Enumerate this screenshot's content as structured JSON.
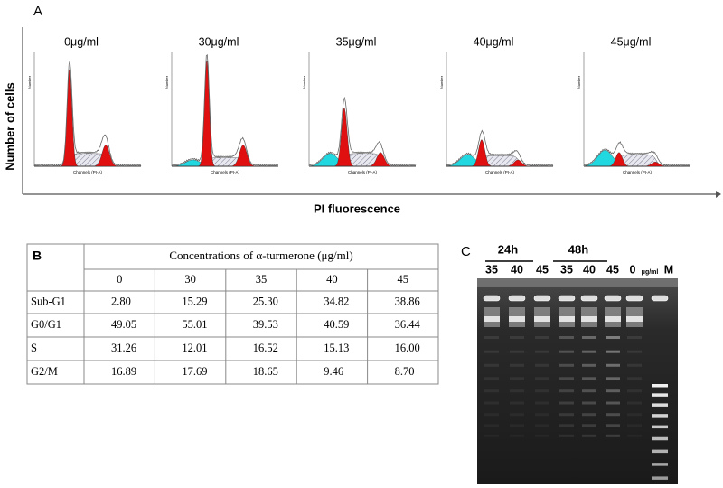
{
  "labels": {
    "panel_a": "A",
    "panel_c": "C"
  },
  "panel_a": {
    "y_axis_label": "Number of cells",
    "x_axis_label": "PI  fluorescence",
    "histogram_x_label": "Channels (PI-A)",
    "histogram_y_label": "Number",
    "histograms": [
      {
        "title": "0μg/ml"
      },
      {
        "title": "30μg/ml"
      },
      {
        "title": "35μg/ml"
      },
      {
        "title": "40μg/ml"
      },
      {
        "title": "45μg/ml"
      }
    ]
  },
  "table": {
    "corner": "B",
    "header": "Concentrations of α-turmerone (μg/ml)",
    "columns": [
      "0",
      "30",
      "35",
      "40",
      "45"
    ],
    "rows": [
      [
        "Sub-G1",
        "2.80",
        "15.29",
        "25.30",
        "34.82",
        "38.86"
      ],
      [
        "G0/G1",
        "49.05",
        "55.01",
        "39.53",
        "40.59",
        "36.44"
      ],
      [
        "S",
        "31.26",
        "12.01",
        "16.52",
        "15.13",
        "16.00"
      ],
      [
        "G2/M",
        "16.89",
        "17.69",
        "18.65",
        "9.46",
        "8.70"
      ]
    ]
  },
  "gel": {
    "groups": [
      "24h",
      "48h"
    ],
    "lanes": [
      "35",
      "40",
      "45",
      "35",
      "40",
      "45"
    ],
    "control": {
      "value": "0",
      "unit": "μg/ml"
    },
    "marker": "M"
  }
}
